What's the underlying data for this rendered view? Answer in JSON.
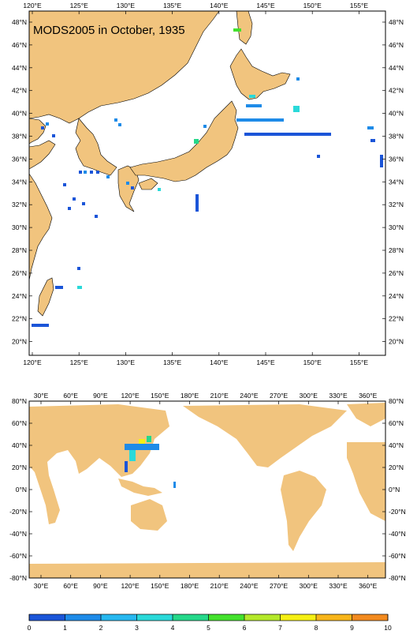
{
  "title": "MODS2005 in October, 1935",
  "colors": {
    "land": "#f1c47e",
    "sea": "#ffffff",
    "frame": "#000000"
  },
  "top_map": {
    "lon_labels": [
      "120°E",
      "125°E",
      "130°E",
      "135°E",
      "140°E",
      "145°E",
      "150°E",
      "155°E"
    ],
    "lat_labels": [
      "48°N",
      "46°N",
      "44°N",
      "42°N",
      "40°N",
      "38°N",
      "36°N",
      "34°N",
      "32°N",
      "30°N",
      "28°N",
      "26°N",
      "24°N",
      "22°N",
      "20°N"
    ]
  },
  "bottom_map": {
    "lon_labels": [
      "30°E",
      "60°E",
      "90°E",
      "120°E",
      "150°E",
      "180°E",
      "210°E",
      "240°E",
      "270°E",
      "300°E",
      "330°E",
      "360°E"
    ],
    "lat_labels": [
      "80°N",
      "60°N",
      "40°N",
      "20°N",
      "0°N",
      "-20°N",
      "-40°N",
      "-60°N",
      "-80°N"
    ]
  },
  "colorbar": {
    "labels": [
      "0",
      "1",
      "2",
      "3",
      "4",
      "5",
      "6",
      "7",
      "8",
      "9",
      "10"
    ],
    "colors": [
      "#1b55d8",
      "#1e8be8",
      "#27b8f0",
      "#2ad9d9",
      "#25d88a",
      "#43e12d",
      "#b4e82a",
      "#f5ef14",
      "#f7b51a",
      "#f28a1f"
    ]
  }
}
